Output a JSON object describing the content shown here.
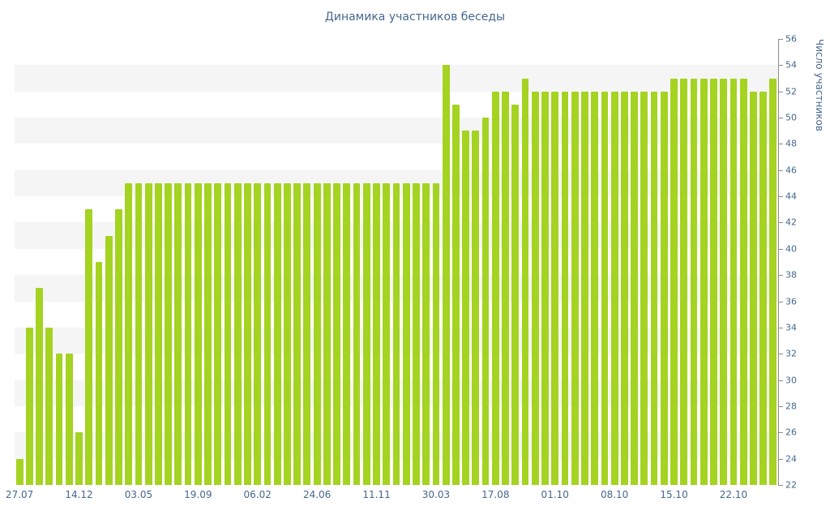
{
  "page": {
    "background": "#ffffff"
  },
  "chart_data": {
    "type": "bar",
    "title": "Динамика участников беседы",
    "xlabel": "",
    "ylabel": "Число участников",
    "ylim": [
      22,
      56
    ],
    "y_ticks": [
      22,
      24,
      26,
      28,
      30,
      32,
      34,
      36,
      38,
      40,
      42,
      44,
      46,
      48,
      50,
      52,
      54,
      56
    ],
    "x_tick_labels": [
      "27.07",
      "14.12",
      "03.05",
      "19.09",
      "06.02",
      "24.06",
      "11.11",
      "30.03",
      "17.08",
      "01.10",
      "08.10",
      "15.10",
      "22.10"
    ],
    "x_tick_every": 6,
    "grid": "horizontal-striped-bands",
    "legend": "none",
    "colors": {
      "bar": "#a4d321",
      "stripe": "#f5f5f5",
      "label": "#45688e",
      "axis": "#8c8c8c"
    },
    "values": [
      24,
      34,
      37,
      34,
      32,
      32,
      26,
      43,
      39,
      41,
      43,
      45,
      45,
      45,
      45,
      45,
      45,
      45,
      45,
      45,
      45,
      45,
      45,
      45,
      45,
      45,
      45,
      45,
      45,
      45,
      45,
      45,
      45,
      45,
      45,
      45,
      45,
      45,
      45,
      45,
      45,
      45,
      45,
      54,
      51,
      49,
      49,
      50,
      52,
      52,
      51,
      53,
      52,
      52,
      52,
      52,
      52,
      52,
      52,
      52,
      52,
      52,
      52,
      52,
      52,
      52,
      53,
      53,
      53,
      53,
      53,
      53,
      53,
      53,
      52,
      52,
      53
    ]
  }
}
